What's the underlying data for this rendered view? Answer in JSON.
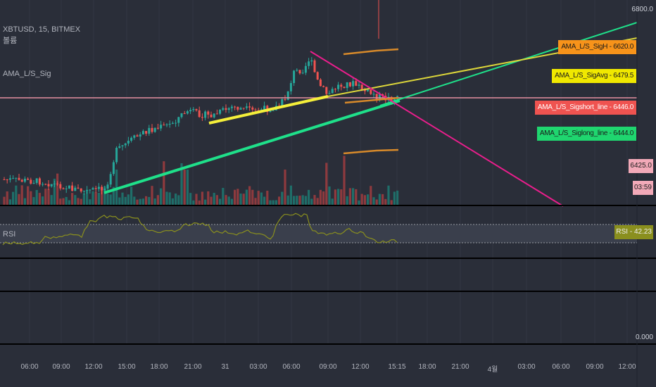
{
  "legend": {
    "symbol_line": "XBTUSD, 15, BITMEX",
    "line2": "볼륨",
    "line3": "AMA_L/S_Sig"
  },
  "series_labels": [
    {
      "name": "AMA_L/S_SigH",
      "value": "6620.0",
      "color": "#f7931a",
      "text_color": "#1b1b1b"
    },
    {
      "name": "AMA_L/S_SigAvg",
      "value": "6479.5",
      "color": "#f0e800",
      "text_color": "#1b1b1b"
    },
    {
      "name": "AMA_L/S_Sigshort_line",
      "value": "6446.0",
      "color": "#ef5350",
      "text_color": "#ffffff"
    },
    {
      "name": "AMA_L/S_Siglong_line",
      "value": "6444.0",
      "color": "#1fd66f",
      "text_color": "#1b1b1b"
    }
  ],
  "price_axis": {
    "top_value": "6800.0",
    "last_price": "6425.0",
    "countdown": "03:59",
    "bottom_value": "0.000"
  },
  "rsi": {
    "label": "RSI",
    "value_tag": "RSI - 42.23"
  },
  "time_axis": [
    "06:00",
    "09:00",
    "12:00",
    "15:00",
    "18:00",
    "21:00",
    "31",
    "03:00",
    "06:00",
    "09:00",
    "12:00",
    "15:15",
    "18:00",
    "21:00",
    "4월",
    "03:00",
    "06:00",
    "09:00",
    "12:00"
  ],
  "colors": {
    "background": "#2a2e39",
    "up": "#26a69a",
    "down": "#ef5350",
    "trend_green": "#1fe08a",
    "trend_yellow": "#f5ef3a",
    "trend_magenta": "#e91e8c",
    "band_orange": "#d88a2a",
    "rsi_line": "#8a8f1e",
    "pink_level": "#e48fa0"
  }
}
